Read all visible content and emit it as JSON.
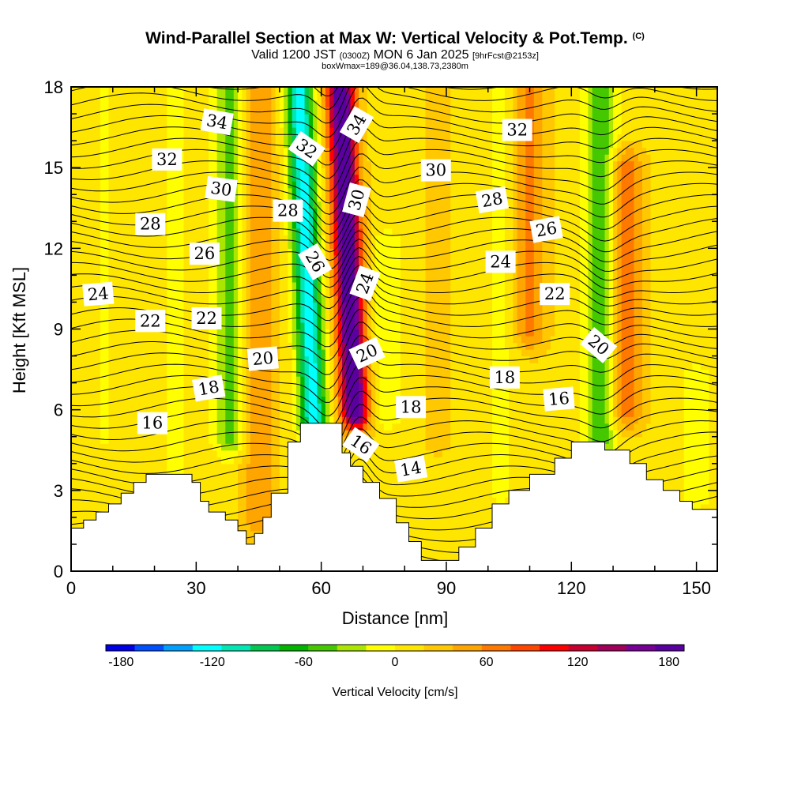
{
  "header": {
    "title": "Wind-Parallel Section at Max W: Vertical Velocity & Pot.Temp.",
    "copyright": "(C)",
    "valid_prefix": "Valid 1200 JST",
    "valid_zulu": "(0300Z)",
    "valid_date": "MON 6 Jan 2025",
    "forecast": "[9hrFcst@2153z]",
    "box_info": "boxWmax=189@36.04,138.73,2380m"
  },
  "chart_data": {
    "type": "heatmap",
    "title": "Wind-Parallel Section at Max W: Vertical Velocity & Pot.Temp.",
    "xlabel": "Distance [nm]",
    "ylabel": "Height [Kft MSL]",
    "xlim": [
      0,
      155
    ],
    "ylim": [
      0,
      18
    ],
    "xticks": [
      0,
      30,
      60,
      90,
      120,
      150
    ],
    "yticks": [
      0,
      3,
      6,
      9,
      12,
      15,
      18
    ],
    "colorbar": {
      "label": "Vertical Velocity [cm/s]",
      "range": [
        -190,
        190
      ],
      "tick_values": [
        -180,
        -120,
        -60,
        0,
        60,
        120,
        180
      ],
      "tick_labels": [
        "-180",
        "-120",
        "-60",
        "0",
        "60",
        "120",
        "180"
      ],
      "colors": [
        "#0000e6",
        "#0050ff",
        "#00a0ff",
        "#00ffff",
        "#00e6b4",
        "#00c850",
        "#00b400",
        "#46c800",
        "#aae600",
        "#ffff00",
        "#ffe600",
        "#ffc800",
        "#ffa500",
        "#ff7800",
        "#ff4600",
        "#ff0000",
        "#c80032",
        "#a0005a",
        "#780096",
        "#5a00a0"
      ]
    },
    "vertical_velocity_features": [
      {
        "x": 8,
        "y_range": [
          5,
          18
        ],
        "w": -15
      },
      {
        "x": 25,
        "y_range": [
          3.5,
          18
        ],
        "w": -20
      },
      {
        "x": 38,
        "y_range": [
          5,
          18
        ],
        "w": -60
      },
      {
        "x": 45,
        "y_range": [
          2,
          18
        ],
        "w": 40
      },
      {
        "x": 58,
        "y_range": [
          5.5,
          18
        ],
        "w": -140
      },
      {
        "x": 68,
        "y_range": [
          6,
          18
        ],
        "w": 189
      },
      {
        "x": 76,
        "y_range": [
          6,
          12
        ],
        "w": -30
      },
      {
        "x": 88,
        "y_range": [
          5,
          18
        ],
        "w": 10
      },
      {
        "x": 103,
        "y_range": [
          3,
          18
        ],
        "w": -20
      },
      {
        "x": 110,
        "y_range": [
          9,
          18
        ],
        "w": 50
      },
      {
        "x": 127,
        "y_range": [
          5,
          18
        ],
        "w": -70
      },
      {
        "x": 133,
        "y_range": [
          6,
          15
        ],
        "w": 60
      },
      {
        "x": 150,
        "y_range": [
          3,
          7
        ],
        "w": -30
      }
    ],
    "terrain": [
      {
        "x": 0,
        "h": 1.6
      },
      {
        "x": 3,
        "h": 1.9
      },
      {
        "x": 6,
        "h": 2.2
      },
      {
        "x": 9,
        "h": 2.5
      },
      {
        "x": 12,
        "h": 2.9
      },
      {
        "x": 15,
        "h": 3.3
      },
      {
        "x": 18,
        "h": 3.6
      },
      {
        "x": 29,
        "h": 3.3
      },
      {
        "x": 31,
        "h": 2.6
      },
      {
        "x": 33,
        "h": 2.2
      },
      {
        "x": 37,
        "h": 1.9
      },
      {
        "x": 40,
        "h": 1.5
      },
      {
        "x": 42,
        "h": 1.0
      },
      {
        "x": 44,
        "h": 1.4
      },
      {
        "x": 46,
        "h": 2.0
      },
      {
        "x": 48,
        "h": 2.9
      },
      {
        "x": 52,
        "h": 4.8
      },
      {
        "x": 55,
        "h": 5.5
      },
      {
        "x": 65,
        "h": 4.4
      },
      {
        "x": 67,
        "h": 3.9
      },
      {
        "x": 70,
        "h": 3.3
      },
      {
        "x": 74,
        "h": 2.7
      },
      {
        "x": 78,
        "h": 1.8
      },
      {
        "x": 81,
        "h": 1.1
      },
      {
        "x": 84,
        "h": 0.4
      },
      {
        "x": 90,
        "h": 0.4
      },
      {
        "x": 93,
        "h": 0.9
      },
      {
        "x": 97,
        "h": 1.6
      },
      {
        "x": 101,
        "h": 2.5
      },
      {
        "x": 105,
        "h": 3.0
      },
      {
        "x": 110,
        "h": 3.6
      },
      {
        "x": 116,
        "h": 4.2
      },
      {
        "x": 120,
        "h": 4.8
      },
      {
        "x": 128,
        "h": 4.5
      },
      {
        "x": 134,
        "h": 4.0
      },
      {
        "x": 138,
        "h": 3.4
      },
      {
        "x": 142,
        "h": 3.0
      },
      {
        "x": 146,
        "h": 2.6
      },
      {
        "x": 149,
        "h": 2.3
      },
      {
        "x": 155,
        "h": 2.3
      }
    ],
    "theta_labels": [
      {
        "text": "34",
        "x": 35,
        "y": 16.7,
        "rot": 10
      },
      {
        "text": "32",
        "x": 23,
        "y": 15.3,
        "rot": 0
      },
      {
        "text": "30",
        "x": 36,
        "y": 14.2,
        "rot": 8
      },
      {
        "text": "28",
        "x": 19,
        "y": 12.9,
        "rot": 0
      },
      {
        "text": "26",
        "x": 32,
        "y": 11.8,
        "rot": 0
      },
      {
        "text": "24",
        "x": 6.5,
        "y": 10.3,
        "rot": -5
      },
      {
        "text": "22",
        "x": 19,
        "y": 9.3,
        "rot": 0
      },
      {
        "text": "22",
        "x": 32.5,
        "y": 9.4,
        "rot": 0
      },
      {
        "text": "20",
        "x": 46,
        "y": 7.9,
        "rot": -5
      },
      {
        "text": "18",
        "x": 33,
        "y": 6.8,
        "rot": -10
      },
      {
        "text": "16",
        "x": 19.5,
        "y": 5.5,
        "rot": 0
      },
      {
        "text": "32",
        "x": 56.5,
        "y": 15.7,
        "rot": 35
      },
      {
        "text": "28",
        "x": 52,
        "y": 13.4,
        "rot": 0
      },
      {
        "text": "26",
        "x": 58.5,
        "y": 11.5,
        "rot": 60
      },
      {
        "text": "34",
        "x": 68.5,
        "y": 16.6,
        "rot": -60
      },
      {
        "text": "30",
        "x": 68.5,
        "y": 13.8,
        "rot": -75
      },
      {
        "text": "24",
        "x": 70.5,
        "y": 10.7,
        "rot": -70
      },
      {
        "text": "20",
        "x": 71,
        "y": 8.1,
        "rot": -25
      },
      {
        "text": "16",
        "x": 69.5,
        "y": 4.7,
        "rot": 35
      },
      {
        "text": "14",
        "x": 81.5,
        "y": 3.8,
        "rot": -10
      },
      {
        "text": "18",
        "x": 81.5,
        "y": 6.1,
        "rot": 0
      },
      {
        "text": "30",
        "x": 87.5,
        "y": 14.9,
        "rot": 0
      },
      {
        "text": "32",
        "x": 107,
        "y": 16.4,
        "rot": 0
      },
      {
        "text": "28",
        "x": 101,
        "y": 13.8,
        "rot": -10
      },
      {
        "text": "26",
        "x": 114,
        "y": 12.7,
        "rot": -10
      },
      {
        "text": "24",
        "x": 103,
        "y": 11.5,
        "rot": 0
      },
      {
        "text": "22",
        "x": 116,
        "y": 10.3,
        "rot": 0
      },
      {
        "text": "20",
        "x": 126.5,
        "y": 8.4,
        "rot": 40
      },
      {
        "text": "18",
        "x": 104,
        "y": 7.2,
        "rot": 0
      },
      {
        "text": "16",
        "x": 117,
        "y": 6.4,
        "rot": -5
      }
    ]
  }
}
